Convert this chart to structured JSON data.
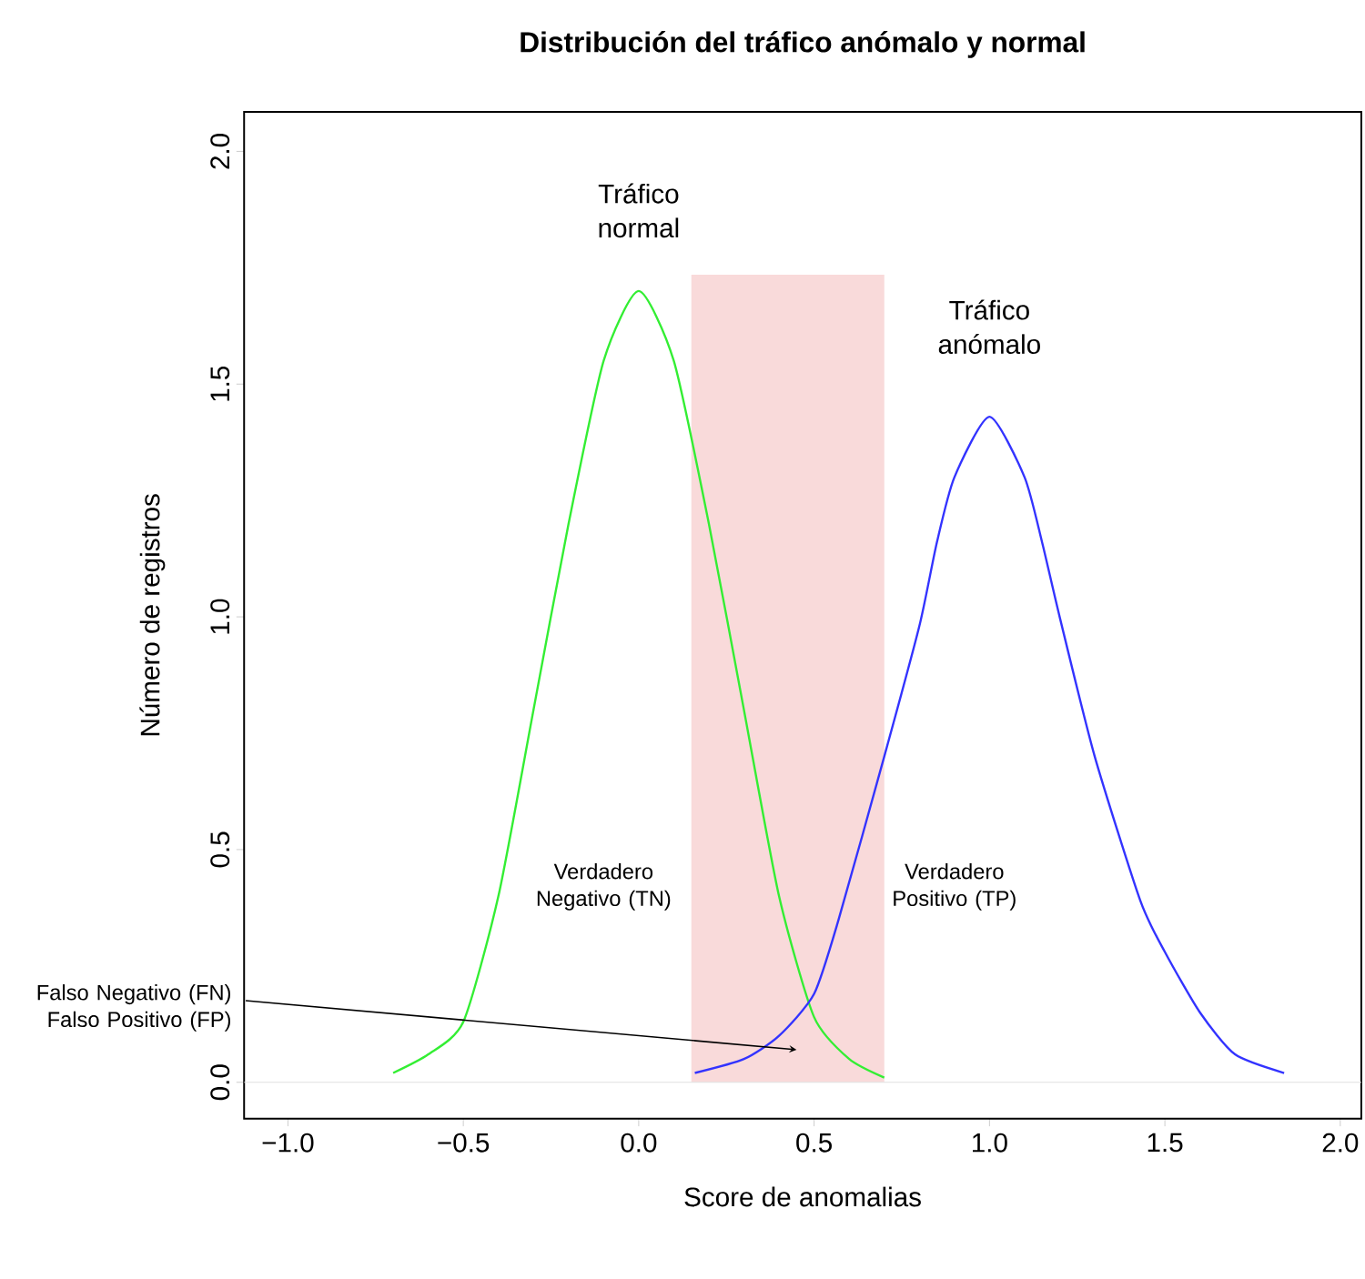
{
  "chart_data": {
    "type": "line",
    "title": "Distribución del tráfico anómalo y normal",
    "xlabel": "Score de anomalias",
    "ylabel": "Número de registros",
    "series": [
      {
        "color": "#33ee33",
        "x": [
          -0.7,
          -0.6,
          -0.5,
          -0.4,
          -0.3,
          -0.2,
          -0.1,
          0,
          0.1,
          0.2,
          0.3,
          0.4,
          0.5,
          0.6,
          0.7
        ],
        "values": [
          0.02,
          0.06,
          0.13,
          0.4,
          0.8,
          1.2,
          1.55,
          1.7,
          1.55,
          1.2,
          0.8,
          0.4,
          0.14,
          0.05,
          0.01
        ]
      },
      {
        "color": "#3333ff",
        "x": [
          0.16,
          0.3,
          0.4,
          0.5,
          0.57,
          0.7,
          0.8,
          0.85,
          0.9,
          1.0,
          1.1,
          1.15,
          1.2,
          1.3,
          1.43,
          1.5,
          1.6,
          1.7,
          1.84
        ],
        "values": [
          0.02,
          0.05,
          0.1,
          0.19,
          0.35,
          0.7,
          0.98,
          1.16,
          1.3,
          1.43,
          1.3,
          1.16,
          1.0,
          0.7,
          0.39,
          0.28,
          0.15,
          0.06,
          0.02
        ]
      }
    ],
    "bands": [
      {
        "axis": "x",
        "from": 0.15,
        "to": 0.7,
        "color": "#f9dada"
      }
    ],
    "annotations": [
      "Tráfico normal",
      "Tráfico anómalo",
      "Verdadero Negativo (TN)",
      "Verdadero Positivo (TP)",
      "Falso Negativo (FN) Falso Positivo (FP)"
    ],
    "ref_lines": [
      {
        "axis": "y",
        "value": 0,
        "color": "#e0e0e0"
      }
    ],
    "xlim": [
      -1.125,
      2.06
    ],
    "ylim": [
      -0.078,
      2.085
    ],
    "xticks": [
      {
        "value": -1,
        "label": "−1.0"
      },
      {
        "value": -0.5,
        "label": "−0.5"
      },
      {
        "value": 0,
        "label": "0.0"
      },
      {
        "value": 0.5,
        "label": "0.5"
      },
      {
        "value": 1,
        "label": "1.0"
      },
      {
        "value": 1.5,
        "label": "1.5"
      },
      {
        "value": 2,
        "label": "2.0"
      }
    ],
    "yticks": [
      {
        "value": 0,
        "label": "0.0"
      },
      {
        "value": 0.5,
        "label": "0.5"
      },
      {
        "value": 1,
        "label": "1.0"
      },
      {
        "value": 1.5,
        "label": "1.5"
      },
      {
        "value": 2,
        "label": "2.0"
      }
    ],
    "grid": false,
    "marker": "none",
    "line_style": "solid"
  }
}
